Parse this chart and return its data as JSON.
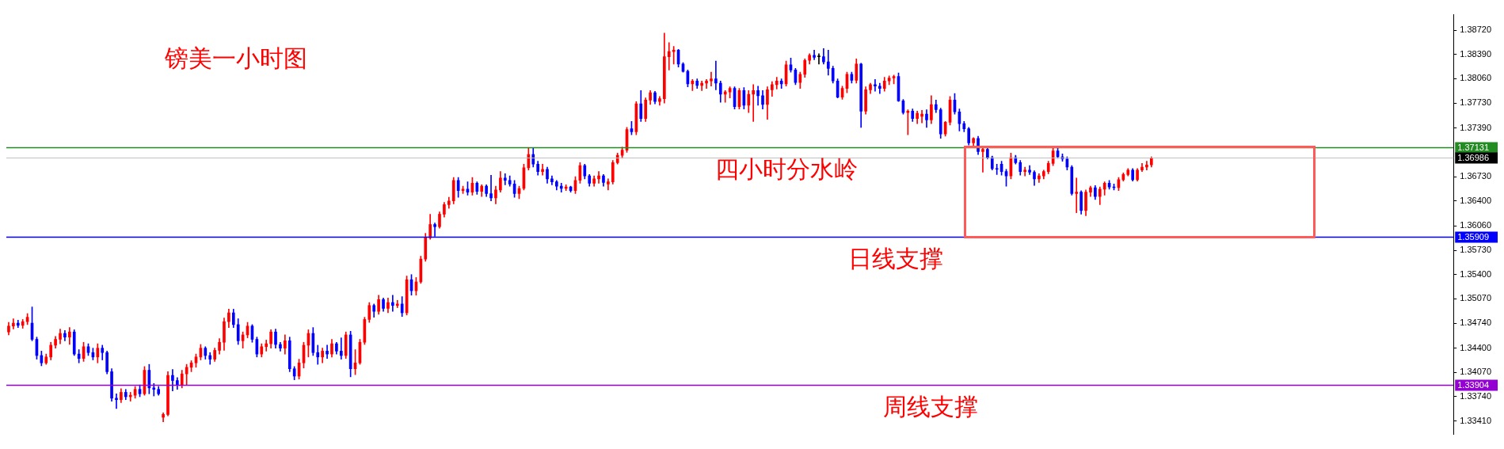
{
  "chart_data": {
    "type": "candlestick",
    "title": "镑美一小时图",
    "categories": [
      null,
      null,
      null,
      null,
      null,
      null,
      null,
      null,
      null,
      null,
      null,
      null,
      null,
      null,
      null,
      null,
      null,
      null,
      null,
      null,
      null,
      null,
      null,
      null,
      null,
      null,
      null,
      null,
      null,
      null,
      null,
      null,
      null,
      null,
      null,
      null,
      null,
      null,
      null,
      null,
      null,
      null,
      null,
      null,
      null,
      null,
      null,
      null,
      null,
      null,
      null,
      null,
      null,
      null,
      null,
      null,
      null,
      null,
      null,
      null,
      null,
      null,
      null,
      null,
      null,
      null,
      null,
      null,
      null,
      null,
      null,
      null,
      null,
      null,
      null,
      null,
      null,
      null,
      null,
      null,
      null,
      null,
      null,
      null,
      null,
      null,
      null,
      null,
      null,
      null,
      null,
      null,
      null,
      null,
      null,
      null,
      null,
      null,
      null,
      null,
      null,
      null,
      null,
      null,
      null,
      null,
      null,
      null,
      null,
      null,
      null,
      null,
      null,
      null,
      null,
      null,
      null,
      null,
      null,
      null,
      null,
      null,
      null,
      null,
      null,
      null,
      null,
      null,
      null,
      null,
      null,
      null,
      null,
      null,
      null,
      null,
      null,
      null,
      null,
      null,
      null,
      null,
      null,
      null,
      null,
      null,
      null,
      null,
      null,
      null,
      null,
      null,
      null,
      null,
      null,
      null,
      null,
      null,
      null,
      null,
      null,
      null,
      null,
      null,
      null,
      null,
      null,
      null,
      null,
      null,
      null,
      null,
      null,
      null,
      null,
      null,
      null,
      null,
      null,
      null,
      null,
      null,
      null,
      null,
      null,
      null,
      null,
      null,
      null,
      null,
      null,
      null,
      null,
      null,
      null,
      null,
      null,
      null,
      null,
      null,
      null,
      null,
      null,
      null,
      null,
      null,
      null,
      null,
      null,
      null,
      null,
      null,
      null,
      null,
      null,
      null,
      null,
      null,
      null,
      null,
      null,
      null,
      null,
      null,
      null,
      null,
      null,
      null,
      null,
      null,
      null,
      null,
      null,
      null,
      null,
      null,
      null,
      null,
      null,
      null,
      null,
      null,
      null,
      null,
      null,
      null,
      null,
      null,
      null,
      null,
      null,
      null,
      null,
      null,
      null,
      null,
      null,
      null,
      null,
      null,
      null,
      null,
      null,
      null,
      null,
      null,
      null,
      null,
      null,
      null,
      null,
      null,
      null,
      null,
      null,
      null,
      null,
      null,
      null,
      null,
      null,
      null,
      null,
      null,
      null,
      null,
      null,
      null,
      null,
      null,
      null,
      null,
      null,
      null,
      null,
      null,
      null,
      null,
      null,
      null,
      null,
      null,
      null,
      null,
      null,
      null,
      null,
      null,
      null
    ],
    "ohlc": [
      [
        1.3462,
        1.3475,
        1.3458,
        1.347
      ],
      [
        1.347,
        1.348,
        1.3466,
        1.3474
      ],
      [
        1.3474,
        1.3478,
        1.3468,
        1.3471
      ],
      [
        1.3471,
        1.3479,
        1.3467,
        1.3476
      ],
      [
        1.3476,
        1.3487,
        1.3472,
        1.3482
      ],
      [
        1.3474,
        1.3496,
        1.345,
        1.3452
      ],
      [
        1.3452,
        1.3455,
        1.3425,
        1.343
      ],
      [
        1.343,
        1.3436,
        1.3416,
        1.342
      ],
      [
        1.342,
        1.3432,
        1.3418,
        1.3428
      ],
      [
        1.3428,
        1.3448,
        1.3424,
        1.3444
      ],
      [
        1.3444,
        1.3456,
        1.344,
        1.3452
      ],
      [
        1.3452,
        1.3466,
        1.3446,
        1.346
      ],
      [
        1.346,
        1.3464,
        1.345,
        1.3455
      ],
      [
        1.3455,
        1.3468,
        1.3445,
        1.3462
      ],
      [
        1.3462,
        1.3465,
        1.343,
        1.3432
      ],
      [
        1.3432,
        1.3438,
        1.342,
        1.3426
      ],
      [
        1.3426,
        1.3448,
        1.3422,
        1.3442
      ],
      [
        1.3442,
        1.3446,
        1.343,
        1.3434
      ],
      [
        1.3434,
        1.344,
        1.3424,
        1.3428
      ],
      [
        1.3428,
        1.3446,
        1.342,
        1.344
      ],
      [
        1.344,
        1.3444,
        1.3424,
        1.3434
      ],
      [
        1.3434,
        1.3436,
        1.3405,
        1.3408
      ],
      [
        1.3408,
        1.3412,
        1.3368,
        1.3372
      ],
      [
        1.3372,
        1.3378,
        1.3358,
        1.337
      ],
      [
        1.337,
        1.3385,
        1.3366,
        1.338
      ],
      [
        1.338,
        1.3384,
        1.337,
        1.3374
      ],
      [
        1.3374,
        1.338,
        1.3368,
        1.3376
      ],
      [
        1.3376,
        1.3388,
        1.3372,
        1.3384
      ],
      [
        1.3384,
        1.339,
        1.3374,
        1.3378
      ],
      [
        1.3378,
        1.3415,
        1.3376,
        1.341
      ],
      [
        1.341,
        1.3418,
        1.3378,
        1.3386
      ],
      [
        1.3386,
        1.3392,
        1.3375,
        1.3384
      ],
      [
        1.3384,
        1.3388,
        1.3376,
        1.3378
      ],
      [
        1.3346,
        1.3352,
        1.334,
        1.335
      ],
      [
        1.335,
        1.3408,
        1.3348,
        1.3403
      ],
      [
        1.3403,
        1.3411,
        1.3382,
        1.3396
      ],
      [
        1.3396,
        1.34,
        1.3384,
        1.339
      ],
      [
        1.339,
        1.341,
        1.3386,
        1.3405
      ],
      [
        1.3405,
        1.3418,
        1.339,
        1.3414
      ],
      [
        1.3414,
        1.3423,
        1.3408,
        1.342
      ],
      [
        1.342,
        1.3432,
        1.3414,
        1.3428
      ],
      [
        1.3428,
        1.3445,
        1.3424,
        1.344
      ],
      [
        1.344,
        1.3442,
        1.3425,
        1.343
      ],
      [
        1.343,
        1.3434,
        1.3418,
        1.3425
      ],
      [
        1.3425,
        1.344,
        1.3422,
        1.3437
      ],
      [
        1.3437,
        1.3453,
        1.3432,
        1.3448
      ],
      [
        1.3448,
        1.3481,
        1.3437,
        1.3476
      ],
      [
        1.3476,
        1.3493,
        1.3468,
        1.3488
      ],
      [
        1.3488,
        1.3493,
        1.3468,
        1.3472
      ],
      [
        1.3472,
        1.348,
        1.3445,
        1.345
      ],
      [
        1.345,
        1.3462,
        1.344,
        1.3458
      ],
      [
        1.3458,
        1.3475,
        1.3454,
        1.347
      ],
      [
        1.347,
        1.3472,
        1.3448,
        1.3452
      ],
      [
        1.3452,
        1.3455,
        1.3428,
        1.3432
      ],
      [
        1.3432,
        1.3446,
        1.3428,
        1.3442
      ],
      [
        1.3442,
        1.3451,
        1.3436,
        1.3446
      ],
      [
        1.3446,
        1.3465,
        1.344,
        1.3462
      ],
      [
        1.3462,
        1.3466,
        1.344,
        1.3445
      ],
      [
        1.3445,
        1.3448,
        1.3436,
        1.344
      ],
      [
        1.344,
        1.3458,
        1.3432,
        1.345
      ],
      [
        1.345,
        1.3455,
        1.3408,
        1.3412
      ],
      [
        1.3412,
        1.3415,
        1.3397,
        1.3402
      ],
      [
        1.3402,
        1.3425,
        1.3398,
        1.342
      ],
      [
        1.342,
        1.3448,
        1.3413,
        1.3444
      ],
      [
        1.3444,
        1.3465,
        1.3428,
        1.346
      ],
      [
        1.346,
        1.3468,
        1.343,
        1.3434
      ],
      [
        1.3434,
        1.3444,
        1.3418,
        1.3428
      ],
      [
        1.3428,
        1.344,
        1.342,
        1.3436
      ],
      [
        1.3436,
        1.3444,
        1.3426,
        1.3432
      ],
      [
        1.3432,
        1.3452,
        1.3428,
        1.3446
      ],
      [
        1.3446,
        1.3448,
        1.3432,
        1.3436
      ],
      [
        1.3436,
        1.3454,
        1.3425,
        1.343
      ],
      [
        1.343,
        1.3462,
        1.3426,
        1.3458
      ],
      [
        1.3458,
        1.3463,
        1.3401,
        1.3412
      ],
      [
        1.3412,
        1.3438,
        1.3404,
        1.342
      ],
      [
        1.342,
        1.3452,
        1.3418,
        1.3448
      ],
      [
        1.3448,
        1.3482,
        1.3445,
        1.3479
      ],
      [
        1.3479,
        1.3502,
        1.3475,
        1.3498
      ],
      [
        1.3498,
        1.35,
        1.3482,
        1.349
      ],
      [
        1.349,
        1.3512,
        1.3486,
        1.3506
      ],
      [
        1.3506,
        1.3508,
        1.349,
        1.3494
      ],
      [
        1.3494,
        1.3508,
        1.3488,
        1.3502
      ],
      [
        1.3502,
        1.3512,
        1.349,
        1.3498
      ],
      [
        1.3498,
        1.3505,
        1.3495,
        1.35
      ],
      [
        1.35,
        1.351,
        1.3483,
        1.3488
      ],
      [
        1.3488,
        1.3538,
        1.3485,
        1.3533
      ],
      [
        1.3533,
        1.354,
        1.3512,
        1.3518
      ],
      [
        1.3518,
        1.3536,
        1.3512,
        1.353
      ],
      [
        1.353,
        1.3565,
        1.3528,
        1.3561
      ],
      [
        1.3561,
        1.3596,
        1.3558,
        1.359
      ],
      [
        1.359,
        1.3622,
        1.3588,
        1.3608
      ],
      [
        1.3608,
        1.361,
        1.3592,
        1.3605
      ],
      [
        1.3605,
        1.3625,
        1.3603,
        1.3622
      ],
      [
        1.3622,
        1.3638,
        1.3618,
        1.3635
      ],
      [
        1.3635,
        1.3645,
        1.363,
        1.364
      ],
      [
        1.364,
        1.3672,
        1.3636,
        1.3668
      ],
      [
        1.3668,
        1.3672,
        1.3645,
        1.3654
      ],
      [
        1.3654,
        1.366,
        1.365,
        1.3656
      ],
      [
        1.3656,
        1.3666,
        1.3648,
        1.3652
      ],
      [
        1.3652,
        1.3672,
        1.3648,
        1.3664
      ],
      [
        1.3664,
        1.3666,
        1.3649,
        1.3653
      ],
      [
        1.3653,
        1.3662,
        1.3646,
        1.366
      ],
      [
        1.366,
        1.3662,
        1.3646,
        1.365
      ],
      [
        1.365,
        1.3675,
        1.364,
        1.3644
      ],
      [
        1.3644,
        1.366,
        1.3636,
        1.3655
      ],
      [
        1.3655,
        1.368,
        1.3652,
        1.3671
      ],
      [
        1.3671,
        1.3677,
        1.3662,
        1.3668
      ],
      [
        1.3668,
        1.3674,
        1.366,
        1.3663
      ],
      [
        1.3663,
        1.3668,
        1.3645,
        1.365
      ],
      [
        1.365,
        1.366,
        1.3643,
        1.3657
      ],
      [
        1.3657,
        1.369,
        1.3655,
        1.3685
      ],
      [
        1.3685,
        1.3712,
        1.3682,
        1.3703
      ],
      [
        1.3703,
        1.3712,
        1.3686,
        1.369
      ],
      [
        1.369,
        1.3694,
        1.3675,
        1.368
      ],
      [
        1.368,
        1.369,
        1.3675,
        1.3683
      ],
      [
        1.3683,
        1.3686,
        1.3664,
        1.367
      ],
      [
        1.367,
        1.3674,
        1.3662,
        1.3666
      ],
      [
        1.3666,
        1.3668,
        1.3655,
        1.366
      ],
      [
        1.366,
        1.3664,
        1.3652,
        1.3657
      ],
      [
        1.3657,
        1.3662,
        1.3654,
        1.3659
      ],
      [
        1.3659,
        1.366,
        1.3652,
        1.3654
      ],
      [
        1.3654,
        1.3673,
        1.365,
        1.3668
      ],
      [
        1.3668,
        1.3692,
        1.3664,
        1.3688
      ],
      [
        1.3688,
        1.369,
        1.367,
        1.3674
      ],
      [
        1.3674,
        1.3676,
        1.366,
        1.3664
      ],
      [
        1.3664,
        1.3674,
        1.366,
        1.367
      ],
      [
        1.367,
        1.368,
        1.3664,
        1.3674
      ],
      [
        1.3674,
        1.3676,
        1.366,
        1.3665
      ],
      [
        1.3663,
        1.367,
        1.3655,
        1.3666
      ],
      [
        1.3666,
        1.3695,
        1.3663,
        1.3692
      ],
      [
        1.3692,
        1.3705,
        1.369,
        1.3702
      ],
      [
        1.3702,
        1.3713,
        1.3698,
        1.3709
      ],
      [
        1.3709,
        1.374,
        1.3706,
        1.3737
      ],
      [
        1.3738,
        1.3748,
        1.373,
        1.3734
      ],
      [
        1.3734,
        1.3775,
        1.373,
        1.3772
      ],
      [
        1.3772,
        1.379,
        1.3748,
        1.3752
      ],
      [
        1.3752,
        1.378,
        1.3748,
        1.3777
      ],
      [
        1.3777,
        1.379,
        1.3771,
        1.3787
      ],
      [
        1.3787,
        1.3789,
        1.3772,
        1.3775
      ],
      [
        1.3775,
        1.3782,
        1.377,
        1.3779
      ],
      [
        1.3779,
        1.3868,
        1.3773,
        1.3836
      ],
      [
        1.3836,
        1.3855,
        1.3818,
        1.3843
      ],
      [
        1.3843,
        1.385,
        1.3826,
        1.3845
      ],
      [
        1.3845,
        1.3846,
        1.3822,
        1.3826
      ],
      [
        1.3826,
        1.3828,
        1.3815,
        1.3816
      ],
      [
        1.3816,
        1.3818,
        1.3795,
        1.3799
      ],
      [
        1.3799,
        1.3805,
        1.379,
        1.3803
      ],
      [
        1.3803,
        1.3806,
        1.3793,
        1.3797
      ],
      [
        1.3797,
        1.3803,
        1.379,
        1.38
      ],
      [
        1.38,
        1.3805,
        1.3793,
        1.3803
      ],
      [
        1.3803,
        1.3815,
        1.3796,
        1.3806
      ],
      [
        1.3806,
        1.383,
        1.3791,
        1.38
      ],
      [
        1.38,
        1.3803,
        1.3774,
        1.3785
      ],
      [
        1.3785,
        1.379,
        1.3774,
        1.3788
      ],
      [
        1.3788,
        1.3795,
        1.378,
        1.3793
      ],
      [
        1.3793,
        1.3795,
        1.3765,
        1.3768
      ],
      [
        1.3768,
        1.3793,
        1.3765,
        1.379
      ],
      [
        1.379,
        1.3794,
        1.3765,
        1.377
      ],
      [
        1.377,
        1.379,
        1.376,
        1.3785
      ],
      [
        1.3785,
        1.3798,
        1.3748,
        1.379
      ],
      [
        1.379,
        1.3796,
        1.377,
        1.3783
      ],
      [
        1.3783,
        1.379,
        1.3765,
        1.3771
      ],
      [
        1.3771,
        1.3795,
        1.3751,
        1.3791
      ],
      [
        1.3791,
        1.3802,
        1.3782,
        1.3798
      ],
      [
        1.3798,
        1.3808,
        1.3792,
        1.3803
      ],
      [
        1.3803,
        1.3806,
        1.3793,
        1.3799
      ],
      [
        1.3799,
        1.383,
        1.3796,
        1.3825
      ],
      [
        1.3825,
        1.3834,
        1.3815,
        1.3818
      ],
      [
        1.3818,
        1.382,
        1.3798,
        1.3801
      ],
      [
        1.3801,
        1.3815,
        1.3793,
        1.3812
      ],
      [
        1.3812,
        1.3833,
        1.3808,
        1.3831
      ],
      [
        1.3831,
        1.384,
        1.3826,
        1.3838
      ],
      [
        1.3838,
        1.3845,
        1.3832,
        1.3835
      ],
      [
        1.3836,
        1.384,
        1.3826,
        1.3836
      ],
      [
        1.3836,
        1.3847,
        1.3826,
        1.3829
      ],
      [
        1.3829,
        1.3845,
        1.3811,
        1.382
      ],
      [
        1.382,
        1.3823,
        1.38,
        1.3803
      ],
      [
        1.3803,
        1.3806,
        1.378,
        1.3781
      ],
      [
        1.3781,
        1.3796,
        1.3778,
        1.3793
      ],
      [
        1.3793,
        1.3815,
        1.3787,
        1.3812
      ],
      [
        1.3812,
        1.3815,
        1.38,
        1.3804
      ],
      [
        1.3804,
        1.3833,
        1.38,
        1.3826
      ],
      [
        1.3826,
        1.3827,
        1.374,
        1.3762
      ],
      [
        1.3762,
        1.3795,
        1.3758,
        1.3791
      ],
      [
        1.3791,
        1.38,
        1.3786,
        1.3798
      ],
      [
        1.3798,
        1.3805,
        1.3789,
        1.3796
      ],
      [
        1.3796,
        1.38,
        1.3786,
        1.3793
      ],
      [
        1.3793,
        1.3808,
        1.3789,
        1.3803
      ],
      [
        1.3803,
        1.381,
        1.3798,
        1.3807
      ],
      [
        1.3807,
        1.3811,
        1.3799,
        1.3809
      ],
      [
        1.3809,
        1.3814,
        1.3775,
        1.3776
      ],
      [
        1.3776,
        1.3778,
        1.3758,
        1.376
      ],
      [
        1.376,
        1.3764,
        1.373,
        1.3762
      ],
      [
        1.3762,
        1.3765,
        1.3748,
        1.3752
      ],
      [
        1.3752,
        1.3762,
        1.3745,
        1.3759
      ],
      [
        1.3755,
        1.3763,
        1.3746,
        1.3758
      ],
      [
        1.3758,
        1.3764,
        1.374,
        1.375
      ],
      [
        1.375,
        1.3783,
        1.3745,
        1.3771
      ],
      [
        1.3771,
        1.3777,
        1.376,
        1.3764
      ],
      [
        1.3764,
        1.3766,
        1.3725,
        1.3731
      ],
      [
        1.3731,
        1.3748,
        1.3728,
        1.3747
      ],
      [
        1.3747,
        1.3782,
        1.3743,
        1.3777
      ],
      [
        1.3777,
        1.3786,
        1.3758,
        1.3761
      ],
      [
        1.3761,
        1.3765,
        1.3735,
        1.3745
      ],
      [
        1.3745,
        1.3748,
        1.3734,
        1.3738
      ],
      [
        1.3738,
        1.374,
        1.3716,
        1.3719
      ],
      [
        1.3719,
        1.3726,
        1.3714,
        1.3725
      ],
      [
        1.3725,
        1.3728,
        1.3703,
        1.3707
      ],
      [
        1.3707,
        1.3712,
        1.3679,
        1.371
      ],
      [
        1.371,
        1.3714,
        1.3697,
        1.3699
      ],
      [
        1.3699,
        1.3701,
        1.3682,
        1.3684
      ],
      [
        1.3684,
        1.369,
        1.3676,
        1.3683
      ],
      [
        1.369,
        1.3694,
        1.3675,
        1.368
      ],
      [
        1.368,
        1.3683,
        1.366,
        1.3674
      ],
      [
        1.3674,
        1.3705,
        1.367,
        1.3699
      ],
      [
        1.3699,
        1.3702,
        1.369,
        1.3692
      ],
      [
        1.3692,
        1.3695,
        1.3675,
        1.368
      ],
      [
        1.368,
        1.3686,
        1.3674,
        1.3682
      ],
      [
        1.3682,
        1.3688,
        1.3676,
        1.3679
      ],
      [
        1.3679,
        1.3681,
        1.3661,
        1.367
      ],
      [
        1.367,
        1.3677,
        1.3665,
        1.3674
      ],
      [
        1.3674,
        1.3682,
        1.367,
        1.368
      ],
      [
        1.368,
        1.3694,
        1.3677,
        1.3691
      ],
      [
        1.3691,
        1.3712,
        1.3688,
        1.3708
      ],
      [
        1.3708,
        1.3714,
        1.3698,
        1.37
      ],
      [
        1.37,
        1.3704,
        1.3694,
        1.3697
      ],
      [
        1.3697,
        1.37,
        1.3682,
        1.3686
      ],
      [
        1.3686,
        1.3688,
        1.3648,
        1.365
      ],
      [
        1.365,
        1.3671,
        1.3624,
        1.3652
      ],
      [
        1.3652,
        1.3654,
        1.3622,
        1.3627
      ],
      [
        1.3627,
        1.3655,
        1.362,
        1.3652
      ],
      [
        1.3652,
        1.366,
        1.3646,
        1.3658
      ],
      [
        1.3658,
        1.3661,
        1.3642,
        1.3646
      ],
      [
        1.3646,
        1.3659,
        1.3635,
        1.3656
      ],
      [
        1.3656,
        1.3666,
        1.3648,
        1.3664
      ],
      [
        1.3664,
        1.3668,
        1.3656,
        1.3659
      ],
      [
        1.3659,
        1.3663,
        1.3655,
        1.3658
      ],
      [
        1.3658,
        1.3672,
        1.3654,
        1.3669
      ],
      [
        1.3669,
        1.3678,
        1.3667,
        1.3676
      ],
      [
        1.3676,
        1.3684,
        1.3674,
        1.3682
      ],
      [
        1.3682,
        1.3684,
        1.3667,
        1.3669
      ],
      [
        1.3669,
        1.3684,
        1.3667,
        1.3682
      ],
      [
        1.3682,
        1.3691,
        1.368,
        1.3686
      ],
      [
        1.3686,
        1.3694,
        1.3682,
        1.3689
      ],
      [
        1.3689,
        1.37,
        1.3686,
        1.36986
      ],
      null,
      null,
      null,
      null,
      null,
      null,
      null,
      null,
      null,
      null,
      null,
      null,
      null,
      null,
      null,
      null,
      null,
      null,
      null,
      null,
      null,
      null,
      null,
      null,
      null,
      null,
      null,
      null,
      null,
      null,
      null,
      null,
      null,
      null,
      null,
      null,
      null,
      null,
      null,
      null,
      null,
      null,
      null,
      null,
      null,
      null,
      null,
      null,
      null,
      null,
      null,
      null,
      null,
      null,
      null,
      null,
      null,
      null,
      null,
      null,
      null,
      null,
      null,
      null
    ],
    "colors": [
      "#ff0000",
      "#ff0000",
      "#0000ff",
      "#ff0000",
      "#ff0000",
      "#0000ff",
      "#0000ff",
      "#0000ff",
      "#ff0000",
      "#ff0000",
      "#ff0000",
      "#ff0000",
      "#0000ff",
      "#ff0000",
      "#0000ff",
      "#0000ff",
      "#ff0000",
      "#0000ff",
      "#0000ff",
      "#ff0000",
      "#0000ff",
      "#0000ff",
      "#0000ff",
      "#0000ff",
      "#ff0000",
      "#0000ff",
      "#ff0000",
      "#ff0000",
      "#0000ff",
      "#ff0000",
      "#0000ff",
      "#0000ff",
      "#0000ff",
      "#ff0000",
      "#ff0000",
      "#0000ff",
      "#0000ff",
      "#ff0000",
      "#ff0000",
      "#ff0000",
      "#ff0000",
      "#ff0000",
      "#0000ff",
      "#0000ff",
      "#ff0000",
      "#ff0000",
      "#ff0000",
      "#ff0000",
      "#0000ff",
      "#0000ff",
      "#ff0000",
      "#ff0000",
      "#0000ff",
      "#0000ff",
      "#ff0000",
      "#ff0000",
      "#ff0000",
      "#0000ff",
      "#0000ff",
      "#ff0000",
      "#0000ff",
      "#0000ff",
      "#ff0000",
      "#ff0000",
      "#ff0000",
      "#0000ff",
      "#0000ff",
      "#ff0000",
      "#0000ff",
      "#ff0000",
      "#0000ff",
      "#0000ff",
      "#ff0000",
      "#0000ff",
      "#ff0000",
      "#ff0000",
      "#ff0000",
      "#ff0000",
      "#0000ff",
      "#ff0000",
      "#0000ff",
      "#ff0000",
      "#0000ff",
      "#ff0000",
      "#0000ff",
      "#ff0000",
      "#0000ff",
      "#ff0000",
      "#ff0000",
      "#ff0000",
      "#ff0000",
      "#0000ff",
      "#ff0000",
      "#ff0000",
      "#ff0000",
      "#ff0000",
      "#0000ff",
      "#ff0000",
      "#0000ff",
      "#ff0000",
      "#0000ff",
      "#ff0000",
      "#0000ff",
      "#0000ff",
      "#ff0000",
      "#ff0000",
      "#0000ff",
      "#0000ff",
      "#0000ff",
      "#ff0000",
      "#ff0000",
      "#ff0000",
      "#0000ff",
      "#0000ff",
      "#ff0000",
      "#0000ff",
      "#0000ff",
      "#0000ff",
      "#0000ff",
      "#ff0000",
      "#0000ff",
      "#ff0000",
      "#ff0000",
      "#0000ff",
      "#0000ff",
      "#ff0000",
      "#ff0000",
      "#0000ff",
      "#ff0000",
      "#ff0000",
      "#ff0000",
      "#ff0000",
      "#ff0000",
      "#0000ff",
      "#ff0000",
      "#0000ff",
      "#ff0000",
      "#ff0000",
      "#0000ff",
      "#ff0000",
      "#ff0000",
      "#ff0000",
      "#ff0000",
      "#0000ff",
      "#0000ff",
      "#0000ff",
      "#ff0000",
      "#0000ff",
      "#ff0000",
      "#ff0000",
      "#ff0000",
      "#0000ff",
      "#0000ff",
      "#ff0000",
      "#ff0000",
      "#0000ff",
      "#ff0000",
      "#0000ff",
      "#ff0000",
      "#ff0000",
      "#0000ff",
      "#0000ff",
      "#ff0000",
      "#ff0000",
      "#ff0000",
      "#0000ff",
      "#ff0000",
      "#0000ff",
      "#0000ff",
      "#ff0000",
      "#ff0000",
      "#ff0000",
      "#0000ff",
      "#000000",
      "#0000ff",
      "#0000ff",
      "#0000ff",
      "#0000ff",
      "#ff0000",
      "#ff0000",
      "#0000ff",
      "#ff0000",
      "#0000ff",
      "#ff0000",
      "#ff0000",
      "#0000ff",
      "#0000ff",
      "#ff0000",
      "#ff0000",
      "#ff0000",
      "#0000ff",
      "#0000ff",
      "#ff0000",
      "#0000ff",
      "#ff0000",
      "#ff0000",
      "#0000ff",
      "#ff0000",
      "#0000ff",
      "#0000ff",
      "#ff0000",
      "#ff0000",
      "#0000ff",
      "#0000ff",
      "#0000ff",
      "#0000ff",
      "#ff0000",
      "#0000ff",
      "#ff0000",
      "#0000ff",
      "#0000ff",
      "#0000ff",
      "#0000ff",
      "#0000ff",
      "#ff0000",
      "#0000ff",
      "#0000ff",
      "#ff0000",
      "#0000ff",
      "#0000ff",
      "#ff0000",
      "#ff0000",
      "#ff0000",
      "#ff0000",
      "#0000ff",
      "#0000ff",
      "#0000ff",
      "#0000ff",
      "#ff0000",
      "#0000ff",
      "#ff0000",
      "#ff0000",
      "#0000ff",
      "#ff0000",
      "#ff0000",
      "#0000ff",
      "#0000ff",
      "#ff0000",
      "#ff0000",
      "#ff0000",
      "#0000ff",
      "#ff0000",
      "#ff0000",
      "#ff0000",
      "#ff0000",
      null,
      null,
      null,
      null,
      null,
      null,
      null,
      null,
      null,
      null,
      null,
      null,
      null,
      null,
      null,
      null,
      null,
      null,
      null,
      null,
      null,
      null,
      null,
      null,
      null,
      null,
      null,
      null,
      null,
      null,
      null,
      null,
      null,
      null,
      null,
      null,
      null,
      null,
      null,
      null,
      null,
      null,
      null,
      null,
      null,
      null,
      null,
      null,
      null,
      null,
      null,
      null,
      null,
      null,
      null,
      null,
      null,
      null,
      null,
      null,
      null,
      null,
      null,
      null
    ],
    "ylim": [
      1.3323,
      1.3893
    ],
    "yticks": [
      {
        "value": 1.3872,
        "label": "1.38720"
      },
      {
        "value": 1.3839,
        "label": "1.38390"
      },
      {
        "value": 1.3806,
        "label": "1.38060"
      },
      {
        "value": 1.3773,
        "label": "1.37730"
      },
      {
        "value": 1.3739,
        "label": "1.37390"
      },
      {
        "value": 1.3673,
        "label": "1.36730"
      },
      {
        "value": 1.364,
        "label": "1.36400"
      },
      {
        "value": 1.3606,
        "label": "1.36060"
      },
      {
        "value": 1.3573,
        "label": "1.35730"
      },
      {
        "value": 1.354,
        "label": "1.35400"
      },
      {
        "value": 1.3507,
        "label": "1.35070"
      },
      {
        "value": 1.3474,
        "label": "1.34740"
      },
      {
        "value": 1.344,
        "label": "1.34400"
      },
      {
        "value": 1.3407,
        "label": "1.34070"
      },
      {
        "value": 1.3374,
        "label": "1.33740"
      },
      {
        "value": 1.3341,
        "label": "1.33410"
      }
    ],
    "ref_lines": [
      {
        "axis": "y",
        "value": 1.37131,
        "label": "1.37131",
        "color": "#228b22"
      },
      {
        "axis": "y",
        "value": 1.36986,
        "label": "1.36986",
        "color": "#c0c0c0"
      },
      {
        "axis": "y",
        "value": 1.35909,
        "label": "1.35909",
        "color": "#0000ff"
      },
      {
        "axis": "y",
        "value": 1.33904,
        "label": "1.33904",
        "color": "#9400d3"
      }
    ],
    "annotations": [
      {
        "text": "四小时分水岭",
        "y": 1.37131
      },
      {
        "text": "日线支撑",
        "y": 1.35909
      },
      {
        "text": "周线支撑",
        "y": 1.33904
      }
    ]
  }
}
